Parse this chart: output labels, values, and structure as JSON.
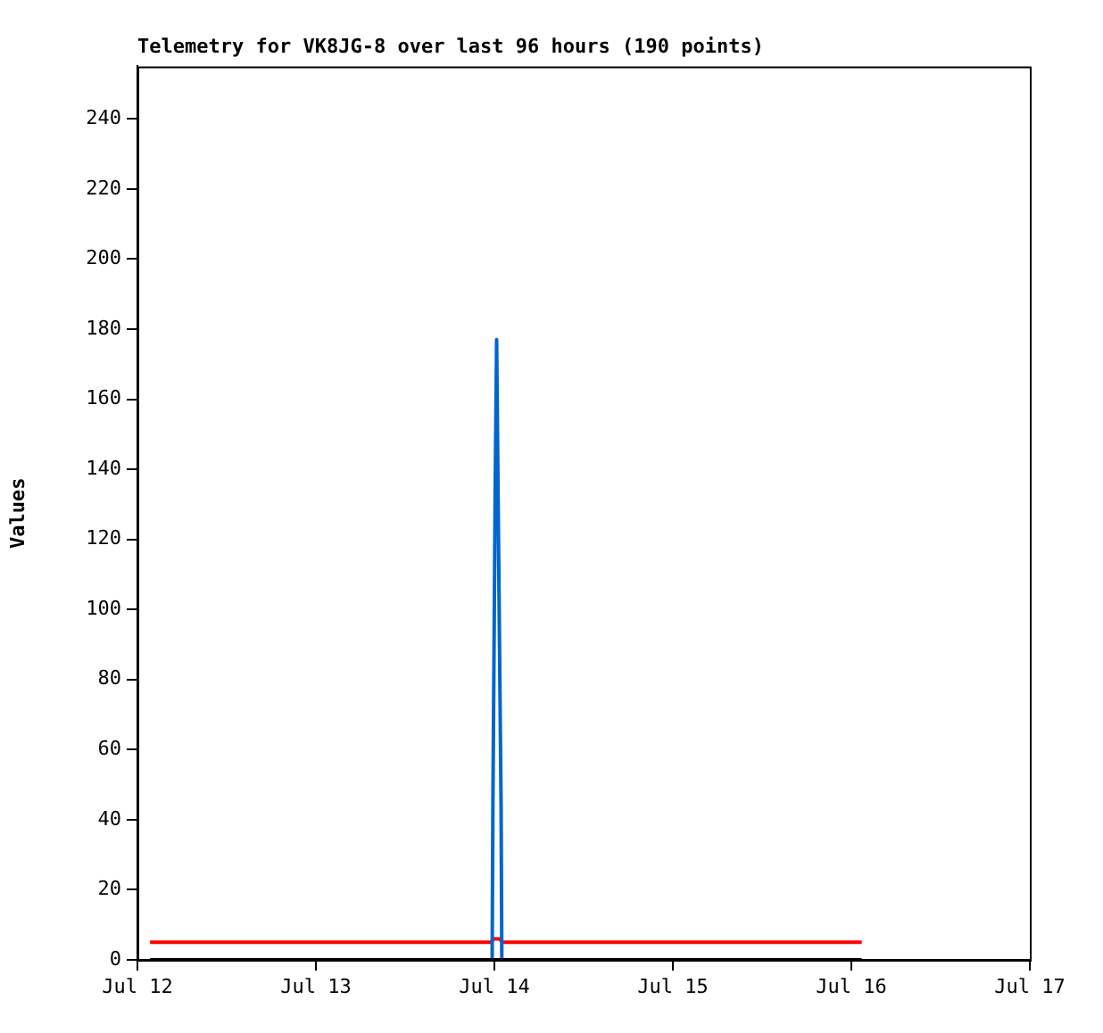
{
  "chart_data": {
    "type": "line",
    "title": "Telemetry for VK8JG-8 over last 96 hours (190 points)",
    "ylabel": "Values",
    "xlim": [
      "--07-12",
      "--07-17"
    ],
    "xticks": [
      {
        "value": "--07-12",
        "label": "Jul 12"
      },
      {
        "value": "--07-13",
        "label": "Jul 13"
      },
      {
        "value": "--07-14",
        "label": "Jul 14"
      },
      {
        "value": "--07-15",
        "label": "Jul 15"
      },
      {
        "value": "--07-16",
        "label": "Jul 16"
      },
      {
        "value": "--07-17",
        "label": "Jul 17"
      }
    ],
    "ylim": [
      0,
      255
    ],
    "yticks": [
      0,
      20,
      40,
      60,
      80,
      100,
      120,
      140,
      160,
      180,
      200,
      220,
      240
    ],
    "grid": false,
    "legend": false,
    "marker": "none",
    "line_style": "solid",
    "series": [
      {
        "color": "#ff0000",
        "x": [
          "--07-12T01:42",
          "--07-13T23:30",
          "--07-13T23:54",
          "--07-14T00:42",
          "--07-14T01:06",
          "--07-16T01:24"
        ],
        "values": [
          5,
          5,
          6,
          6,
          5,
          5
        ]
      },
      {
        "color": "#0066cc",
        "x": [
          "--07-13T23:42",
          "--07-13T23:48",
          "--07-14T00:06",
          "--07-14T00:18",
          "--07-14T00:30",
          "--07-14T00:54",
          "--07-14T01:00"
        ],
        "values": [
          0,
          44,
          132,
          177,
          132,
          44,
          0
        ]
      },
      {
        "color": "#000000",
        "x": [
          "--07-12T01:42",
          "--07-16T01:24"
        ],
        "values": [
          0,
          0
        ]
      }
    ]
  }
}
